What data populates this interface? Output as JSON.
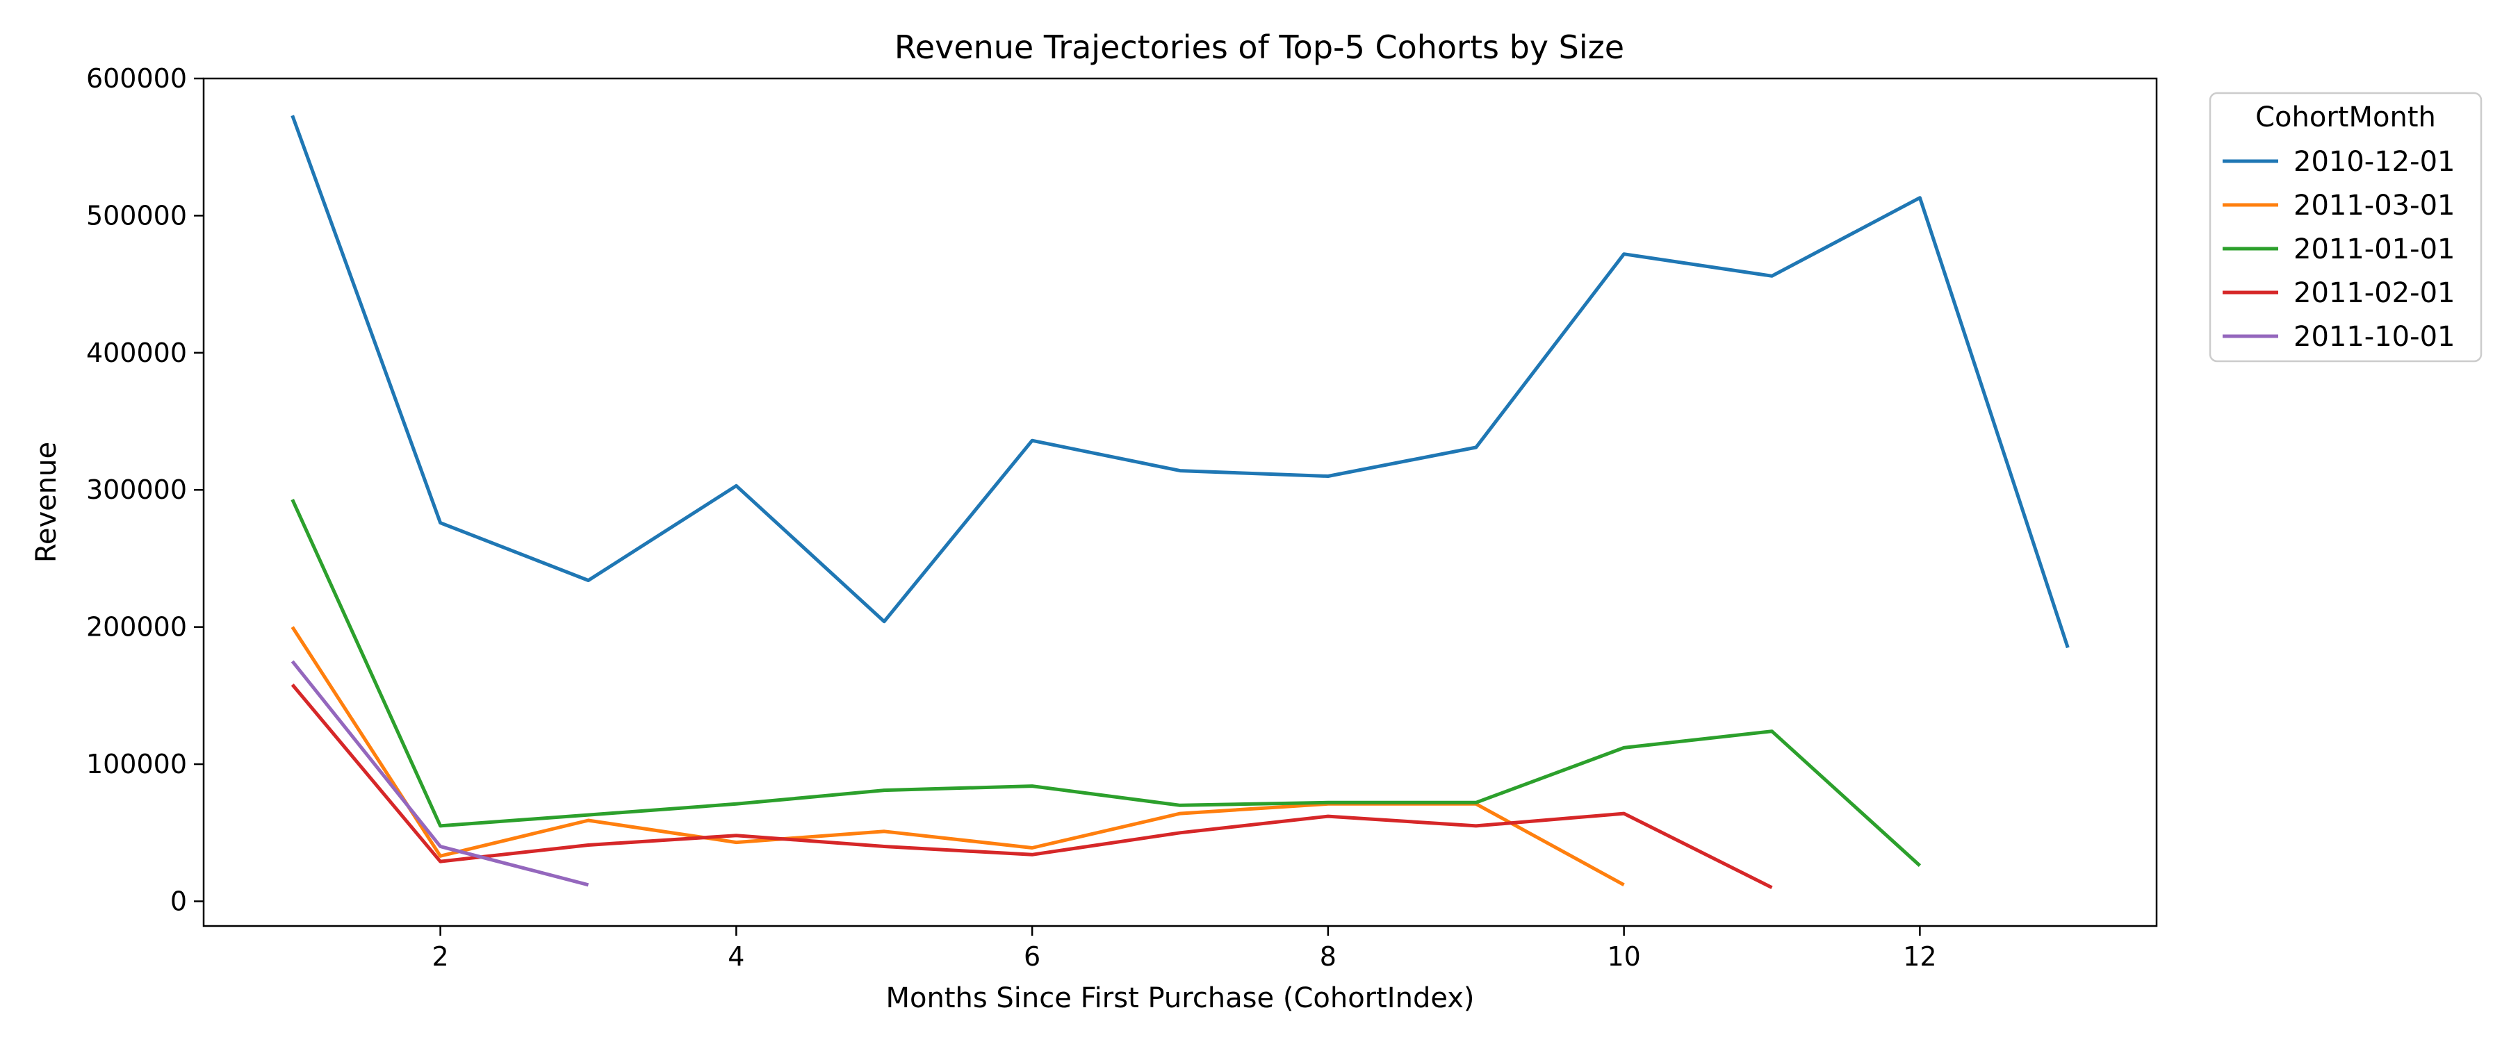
{
  "chart_data": {
    "type": "line",
    "title": "Revenue Trajectories of Top-5 Cohorts by Size",
    "xlabel": "Months Since First Purchase (CohortIndex)",
    "ylabel": "Revenue",
    "xlim": [
      0.4,
      13.6
    ],
    "ylim": [
      -18000,
      600000
    ],
    "xticks": [
      2,
      4,
      6,
      8,
      10,
      12
    ],
    "yticks": [
      0,
      100000,
      200000,
      300000,
      400000,
      500000,
      600000
    ],
    "grid": false,
    "legend": {
      "title": "CohortMonth",
      "placement": "outside-top-right"
    },
    "series": [
      {
        "name": "2010-12-01",
        "color": "#1f77b4",
        "x": [
          1,
          2,
          3,
          4,
          5,
          6,
          7,
          8,
          9,
          10,
          11,
          12,
          13
        ],
        "values": [
          573000,
          276000,
          234000,
          303000,
          204000,
          336000,
          314000,
          310000,
          331000,
          472000,
          456000,
          513000,
          185000
        ]
      },
      {
        "name": "2011-03-01",
        "color": "#ff7f0e",
        "x": [
          1,
          2,
          3,
          4,
          5,
          6,
          7,
          8,
          9,
          10
        ],
        "values": [
          200000,
          33000,
          59000,
          43000,
          51000,
          39000,
          64000,
          71000,
          71000,
          12000
        ]
      },
      {
        "name": "2011-01-01",
        "color": "#2ca02c",
        "x": [
          1,
          2,
          3,
          4,
          5,
          6,
          7,
          8,
          9,
          10,
          11,
          12
        ],
        "values": [
          293000,
          55000,
          63000,
          71000,
          81000,
          84000,
          70000,
          72000,
          72000,
          112000,
          124000,
          26000
        ]
      },
      {
        "name": "2011-02-01",
        "color": "#d62728",
        "x": [
          1,
          2,
          3,
          4,
          5,
          6,
          7,
          8,
          9,
          10,
          11
        ],
        "values": [
          158000,
          29000,
          41000,
          48000,
          40000,
          34000,
          50000,
          62000,
          55000,
          64000,
          10000
        ]
      },
      {
        "name": "2011-10-01",
        "color": "#9467bd",
        "x": [
          1,
          2,
          3
        ],
        "values": [
          175000,
          40000,
          12000
        ]
      }
    ]
  }
}
